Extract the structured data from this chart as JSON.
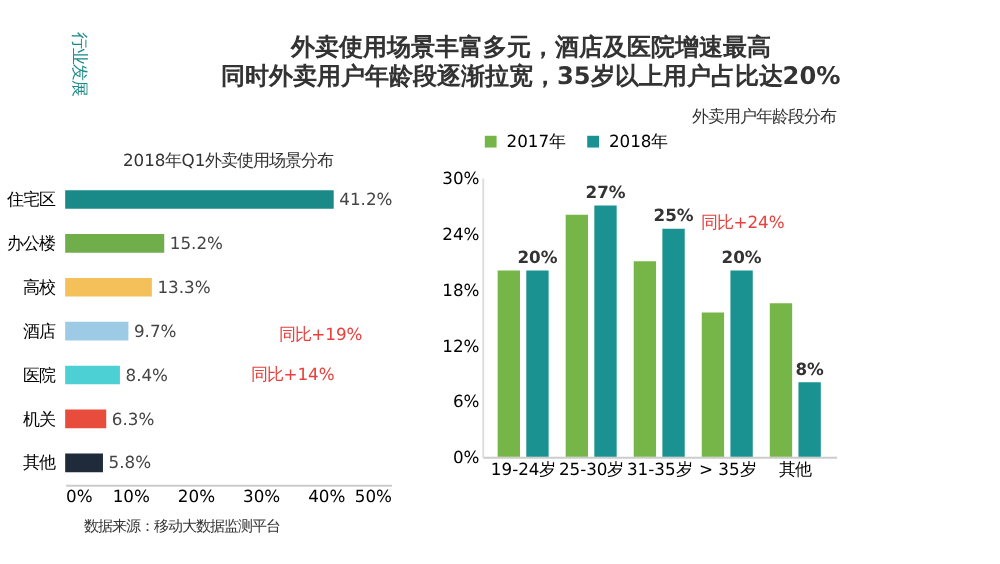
{
  "chart_data": [
    {
      "type": "other",
      "title": "外卖使用场景丰富多元，酒店及医院增速最高",
      "subtitle": "同时外卖用户年龄段逐渐拉宽，35岁以上用户占比达20%",
      "annotations": [
        "行业发展",
        "数据来源：移动大数据监测平台"
      ]
    },
    {
      "type": "bar",
      "orientation": "horizontal",
      "title": "2018年Q1外卖使用场景分布",
      "categories": [
        "住宅区",
        "办公楼",
        "高校",
        "酒店",
        "医院",
        "机关",
        "其他"
      ],
      "values": [
        41.2,
        15.2,
        13.3,
        9.7,
        8.4,
        6.3,
        5.8
      ],
      "colors": [
        "#1a8a88",
        "#6fae4a",
        "#f4c05a",
        "#9dcbe5",
        "#4dd0d4",
        "#e84c3d",
        "#1f2b3b"
      ],
      "value_labels": [
        "41.2%",
        "15.2%",
        "13.3%",
        "9.7%",
        "8.4%",
        "6.3%",
        "5.8%"
      ],
      "xlim": [
        0,
        50
      ],
      "xticks": [
        {
          "value": 0,
          "label": "0%"
        },
        {
          "value": 10,
          "label": "10%"
        },
        {
          "value": 20,
          "label": "20%"
        },
        {
          "value": 30,
          "label": "30%"
        },
        {
          "value": 40,
          "label": "40%"
        },
        {
          "value": 50,
          "label": "50%"
        }
      ],
      "grid": false,
      "annotations": [
        "同比+19%",
        "同比+14%"
      ]
    },
    {
      "type": "bar",
      "title": "外卖用户年龄段分布",
      "categories": [
        "19-24岁",
        "25-30岁",
        "31-35岁",
        "> 35岁",
        "其他"
      ],
      "series": [
        {
          "name": "2017年",
          "color": "#76b547",
          "values": [
            20,
            26,
            21,
            15.5,
            16.5
          ]
        },
        {
          "name": "2018年",
          "color": "#1a9291",
          "values": [
            20,
            27,
            24.5,
            20,
            8
          ],
          "value_labels": [
            "20%",
            "27%",
            "25%",
            "20%",
            "8%"
          ]
        }
      ],
      "ylim": [
        0,
        30
      ],
      "yticks": [
        {
          "value": 0,
          "label": "0%"
        },
        {
          "value": 6,
          "label": "6%"
        },
        {
          "value": 12,
          "label": "12%"
        },
        {
          "value": 18,
          "label": "18%"
        },
        {
          "value": 24,
          "label": "24%"
        },
        {
          "value": 30,
          "label": "30%"
        }
      ],
      "grid": false,
      "legend": "top left",
      "annotations": [
        "同比+24%"
      ]
    }
  ]
}
